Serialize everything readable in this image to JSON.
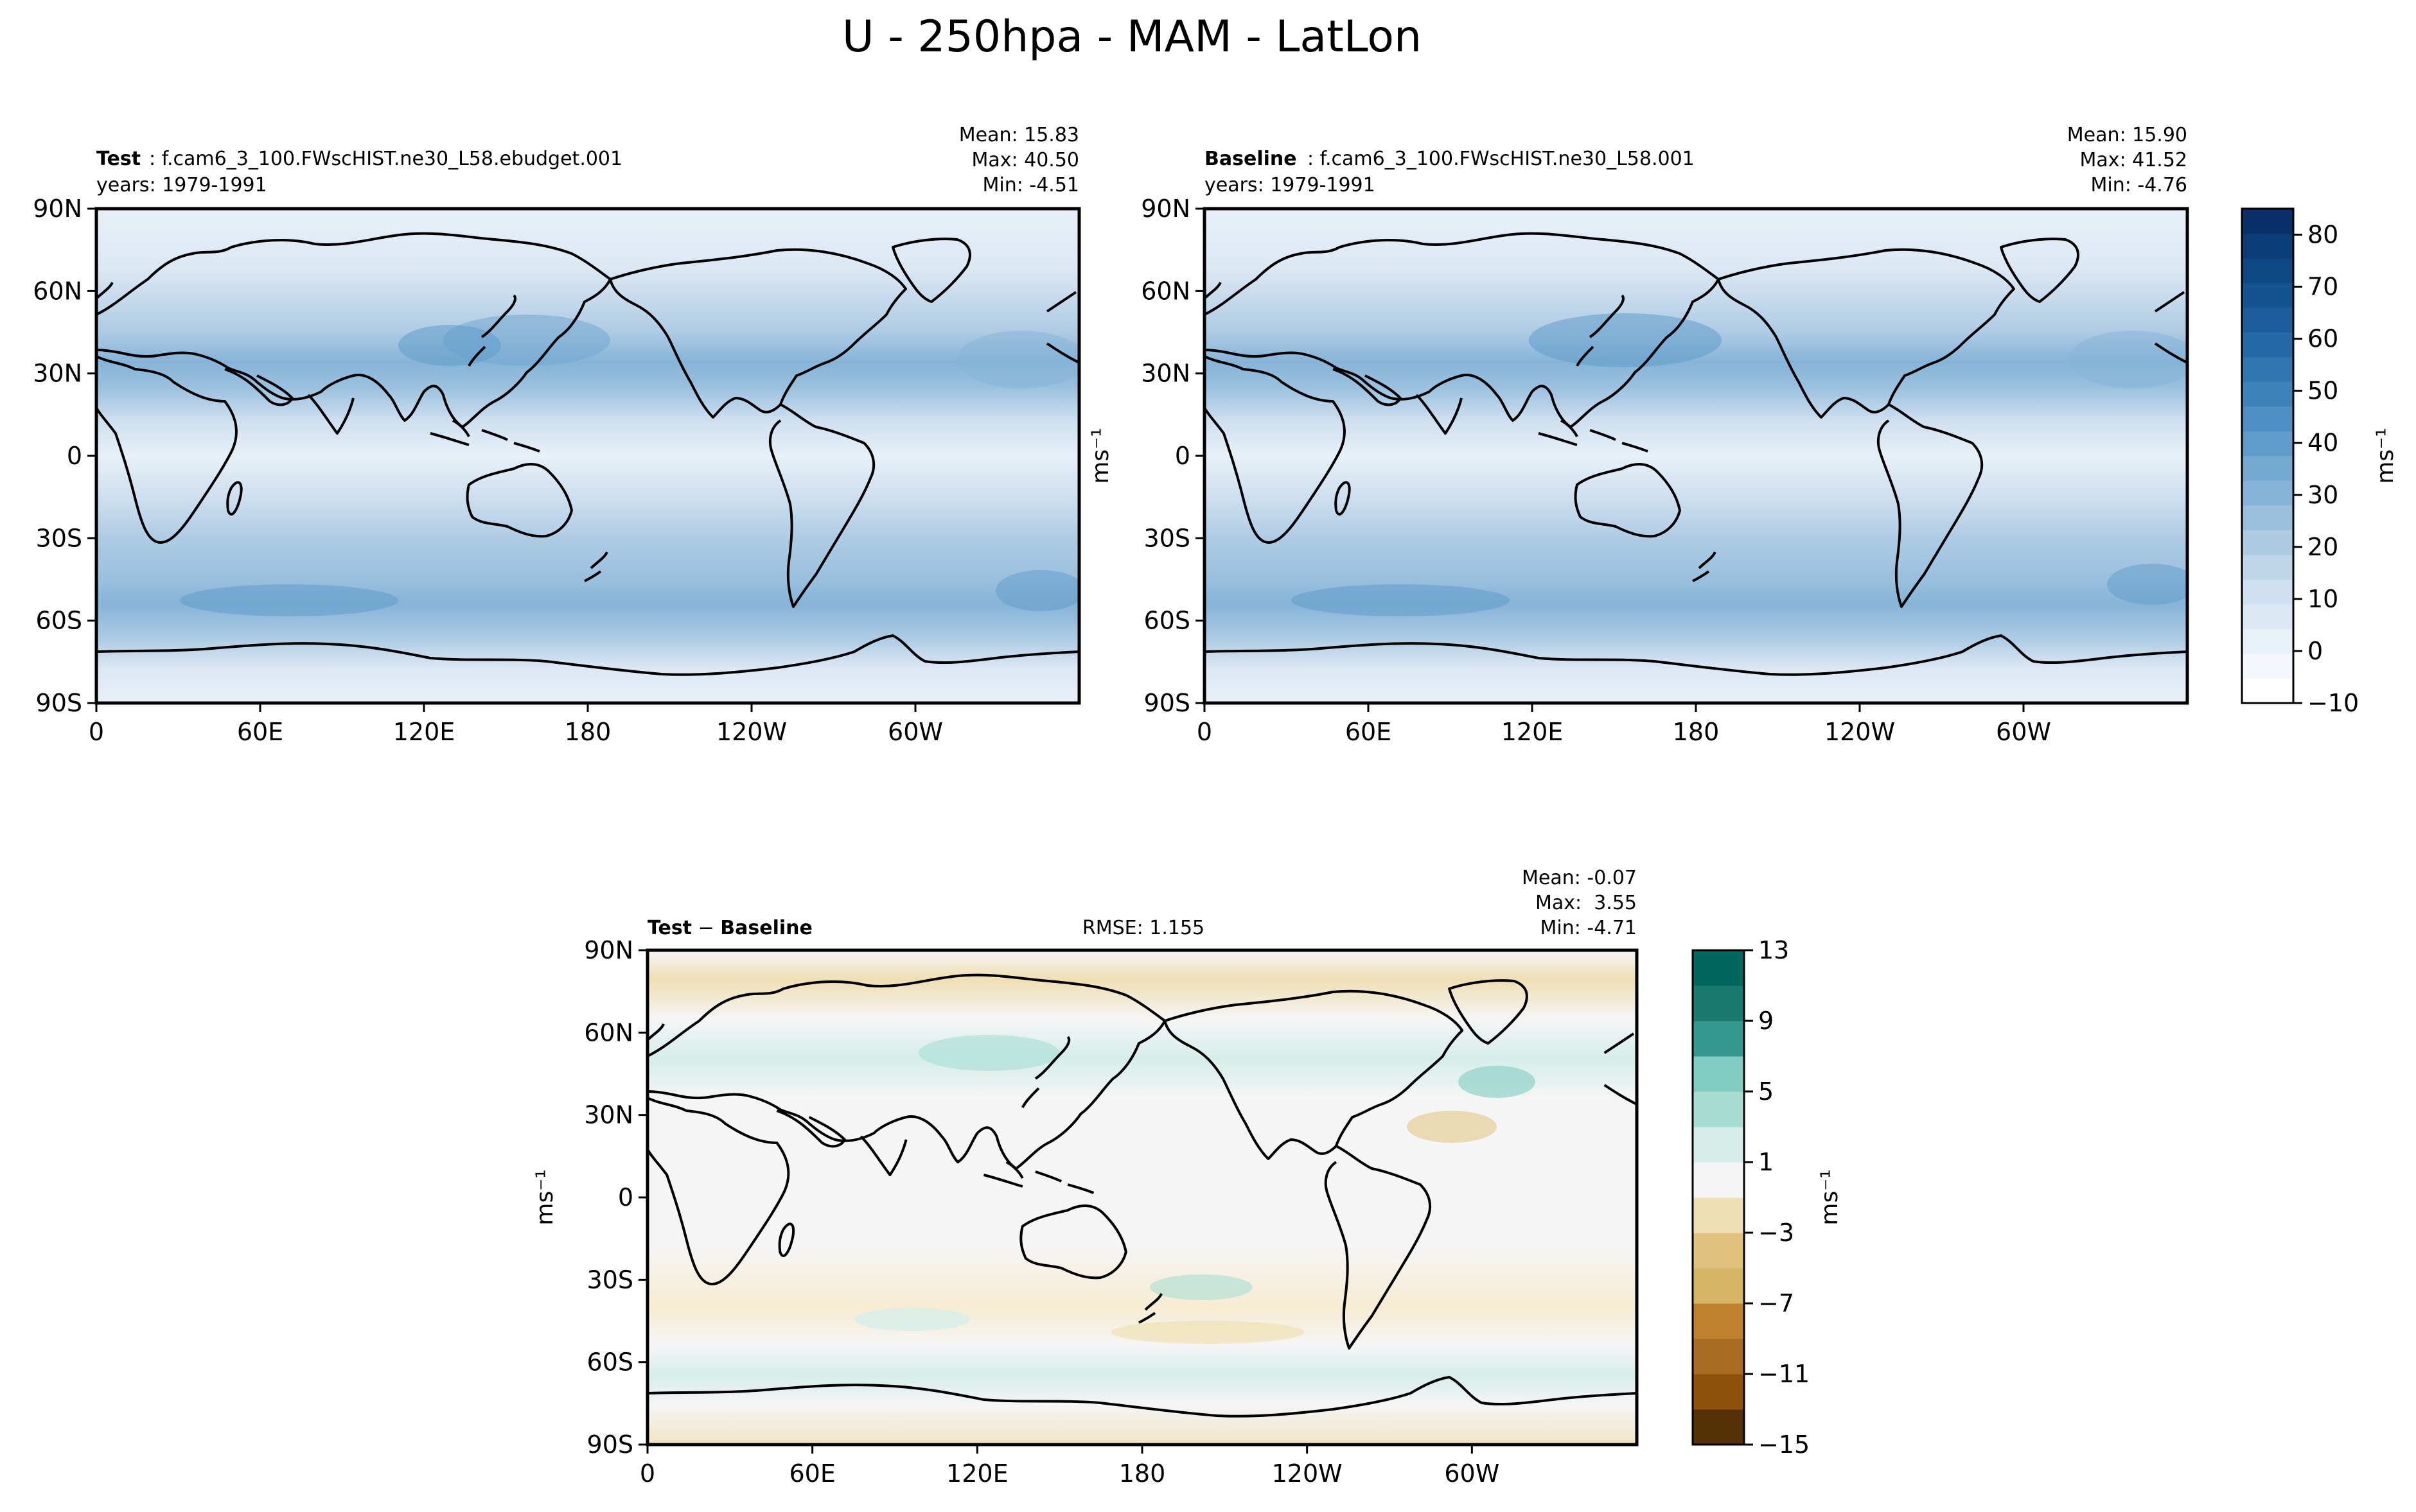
{
  "figure": {
    "title": "U - 250hpa - MAM - LatLon"
  },
  "chart_data": [
    {
      "type": "heatmap",
      "panel": "test",
      "label_bold": "Test",
      "label_text": ": f.cam6_3_100.FWscHIST.ne30_L58.ebudget.001",
      "years": "years: 1979-1991",
      "stats": {
        "mean": "Mean: 15.83",
        "max": "Max: 40.50",
        "min": "Min: -4.51"
      },
      "x_ticks": [
        "0",
        "60E",
        "120E",
        "180",
        "120W",
        "60W"
      ],
      "y_ticks": [
        "90N",
        "60N",
        "30N",
        "0",
        "30S",
        "60S",
        "90S"
      ],
      "units": "ms⁻¹",
      "values_approx_by_lat": [
        {
          "lat": 75,
          "u": 5
        },
        {
          "lat": 45,
          "u": 20
        },
        {
          "lat": 35,
          "u": 28
        },
        {
          "lat": 30,
          "u": 27
        },
        {
          "lat": 15,
          "u": 12
        },
        {
          "lat": 0,
          "u": 2
        },
        {
          "lat": -15,
          "u": 8
        },
        {
          "lat": -30,
          "u": 22
        },
        {
          "lat": -45,
          "u": 28
        },
        {
          "lat": -55,
          "u": 30
        },
        {
          "lat": -65,
          "u": 18
        },
        {
          "lat": -80,
          "u": 5
        }
      ]
    },
    {
      "type": "heatmap",
      "panel": "baseline",
      "label_bold": "Baseline",
      "label_text": ": f.cam6_3_100.FWscHIST.ne30_L58.001",
      "years": "years: 1979-1991",
      "stats": {
        "mean": "Mean: 15.90",
        "max": "Max: 41.52",
        "min": "Min: -4.76"
      },
      "x_ticks": [
        "0",
        "60E",
        "120E",
        "180",
        "120W",
        "60W"
      ],
      "y_ticks": [
        "90N",
        "60N",
        "30N",
        "0",
        "30S",
        "60S",
        "90S"
      ],
      "units": "ms⁻¹",
      "colorbar": {
        "levels": [
          -10,
          -5,
          0,
          5,
          10,
          15,
          20,
          25,
          30,
          35,
          40,
          45,
          50,
          55,
          60,
          65,
          70,
          75,
          80,
          85
        ],
        "tick_labels": [
          "80",
          "70",
          "60",
          "50",
          "40",
          "30",
          "20",
          "10",
          "0",
          "−10"
        ],
        "colors": [
          "#ffffff",
          "#f4f8fc",
          "#e8f0f8",
          "#dce8f4",
          "#cfe0f0",
          "#bfd5ea",
          "#aecbe4",
          "#9ac0de",
          "#86b4d8",
          "#73a8d1",
          "#609cca",
          "#4e90c3",
          "#3d83bb",
          "#3077b2",
          "#256aa8",
          "#1c5e9d",
          "#155291",
          "#0f4785",
          "#0a3c78",
          "#08306b"
        ]
      }
    },
    {
      "type": "heatmap",
      "panel": "difference",
      "label_bold_a": "Test",
      "label_minus": " − ",
      "label_bold_b": "Baseline",
      "rmse": "RMSE: 1.155",
      "stats": {
        "mean": "Mean: -0.07",
        "max": "Max:  3.55",
        "min": "Min: -4.71"
      },
      "x_ticks": [
        "0",
        "60E",
        "120E",
        "180",
        "120W",
        "60W"
      ],
      "y_ticks": [
        "90N",
        "60N",
        "30N",
        "0",
        "30S",
        "60S",
        "90S"
      ],
      "units": "ms⁻¹",
      "colorbar": {
        "levels": [
          -15,
          -13,
          -11,
          -9,
          -7,
          -5,
          -3,
          -1,
          1,
          3,
          5,
          7,
          9,
          11,
          13
        ],
        "tick_labels": [
          "13",
          "9",
          "5",
          "1",
          "−3",
          "−7",
          "−11",
          "−15"
        ],
        "colors": [
          "#543005",
          "#8c510a",
          "#a76d24",
          "#bf812d",
          "#d7b567",
          "#dfc27d",
          "#f0dfb4",
          "#f5f5f5",
          "#d5eee9",
          "#a8ddd4",
          "#80cdc1",
          "#35978f",
          "#1a7a71",
          "#01665e"
        ]
      }
    }
  ]
}
